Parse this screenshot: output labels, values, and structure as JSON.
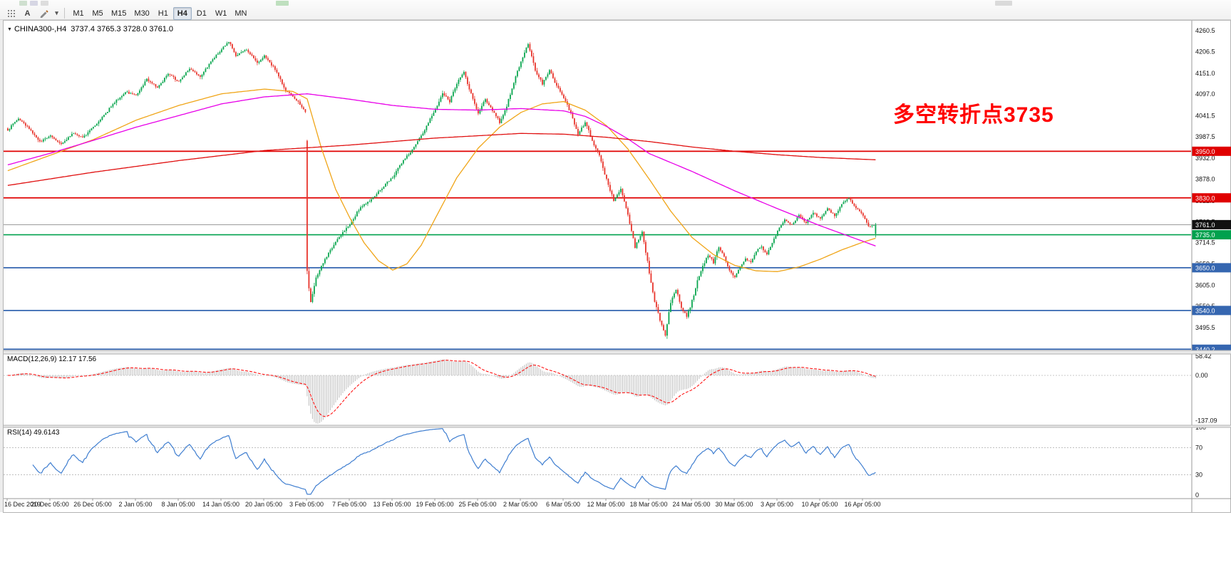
{
  "toolbar": {
    "tools": [
      {
        "name": "grid-tool",
        "label": ""
      },
      {
        "name": "text-tool",
        "label": "A"
      },
      {
        "name": "pencil-tool",
        "label": ""
      },
      {
        "name": "draw-tools-dropdown",
        "label": "▾"
      }
    ],
    "timeframes": [
      "M1",
      "M5",
      "M15",
      "M30",
      "H1",
      "H4",
      "D1",
      "W1",
      "MN"
    ],
    "active_timeframe": "H4"
  },
  "chart": {
    "dropdown_glyph": "▼",
    "title": "CHINA300-,H4",
    "ohlc_text": "3737.4 3765.3 3728.0 3761.0",
    "annotation": "多空转折点3735",
    "annotation_color": "#ff0000"
  },
  "chart_data": {
    "type": "candlestick",
    "symbol": "CHINA300-",
    "timeframe": "H4",
    "bars": 488,
    "bars_per_label": 24,
    "price_range": [
      3437,
      4279
    ],
    "price_axis_ticks": [
      "4260.5",
      "4206.5",
      "4151.0",
      "4097.0",
      "4041.5",
      "3987.5",
      "3932.0",
      "3878.0",
      "3822.5",
      "3768.5",
      "3714.5",
      "3659.5",
      "3605.0",
      "3550.5",
      "3495.5",
      "3441.0"
    ],
    "time_labels": [
      "16 Dec 2019",
      "20 Dec 05:00",
      "26 Dec 05:00",
      "2 Jan 05:00",
      "8 Jan 05:00",
      "14 Jan 05:00",
      "20 Jan 05:00",
      "3 Feb 05:00",
      "7 Feb 05:00",
      "13 Feb 05:00",
      "19 Feb 05:00",
      "25 Feb 05:00",
      "2 Mar 05:00",
      "6 Mar 05:00",
      "12 Mar 05:00",
      "18 Mar 05:00",
      "24 Mar 05:00",
      "30 Mar 05:00",
      "3 Apr 05:00",
      "10 Apr 05:00",
      "16 Apr 05:00"
    ],
    "levels": [
      {
        "label": "3950.0",
        "price": 3950.0,
        "color": "#e00000"
      },
      {
        "label": "3830.0",
        "price": 3830.0,
        "color": "#e00000"
      },
      {
        "label": "3735.0",
        "price": 3735.0,
        "color": "#00a14e"
      },
      {
        "label": "3650.0",
        "price": 3650.0,
        "color": "#3566b0"
      },
      {
        "label": "3540.0",
        "price": 3540.0,
        "color": "#3566b0"
      },
      {
        "label": "3440.2",
        "price": 3440.2,
        "color": "#3566b0"
      }
    ],
    "current_price": {
      "price": 3761.0,
      "label": "3761.0",
      "box_color": "#111111"
    },
    "last_candle_ohlc": [
      3737.4,
      3765.3,
      3728.0,
      3761.0
    ],
    "colors": {
      "up": "#0aa64f",
      "down": "#e8352c"
    },
    "price_anchors": [
      [
        0,
        4005
      ],
      [
        6,
        4035
      ],
      [
        12,
        4008
      ],
      [
        18,
        3975
      ],
      [
        24,
        3990
      ],
      [
        30,
        3968
      ],
      [
        36,
        3996
      ],
      [
        42,
        3984
      ],
      [
        48,
        4012
      ],
      [
        54,
        4042
      ],
      [
        60,
        4076
      ],
      [
        66,
        4102
      ],
      [
        72,
        4094
      ],
      [
        78,
        4136
      ],
      [
        84,
        4114
      ],
      [
        90,
        4150
      ],
      [
        96,
        4128
      ],
      [
        102,
        4162
      ],
      [
        108,
        4142
      ],
      [
        114,
        4182
      ],
      [
        120,
        4212
      ],
      [
        124,
        4233
      ],
      [
        128,
        4196
      ],
      [
        134,
        4212
      ],
      [
        140,
        4178
      ],
      [
        144,
        4196
      ],
      [
        150,
        4162
      ],
      [
        156,
        4106
      ],
      [
        162,
        4082
      ],
      [
        167,
        4052
      ],
      [
        168,
        3640
      ],
      [
        170,
        3566
      ],
      [
        173,
        3622
      ],
      [
        178,
        3674
      ],
      [
        184,
        3716
      ],
      [
        192,
        3764
      ],
      [
        198,
        3806
      ],
      [
        204,
        3826
      ],
      [
        210,
        3856
      ],
      [
        216,
        3884
      ],
      [
        222,
        3926
      ],
      [
        228,
        3960
      ],
      [
        234,
        4006
      ],
      [
        240,
        4060
      ],
      [
        244,
        4100
      ],
      [
        248,
        4078
      ],
      [
        252,
        4124
      ],
      [
        256,
        4154
      ],
      [
        260,
        4098
      ],
      [
        264,
        4048
      ],
      [
        268,
        4084
      ],
      [
        272,
        4056
      ],
      [
        276,
        4024
      ],
      [
        280,
        4066
      ],
      [
        284,
        4128
      ],
      [
        288,
        4182
      ],
      [
        292,
        4226
      ],
      [
        296,
        4158
      ],
      [
        300,
        4124
      ],
      [
        304,
        4158
      ],
      [
        308,
        4118
      ],
      [
        312,
        4088
      ],
      [
        316,
        4048
      ],
      [
        320,
        3992
      ],
      [
        324,
        4024
      ],
      [
        328,
        3978
      ],
      [
        332,
        3938
      ],
      [
        336,
        3878
      ],
      [
        340,
        3824
      ],
      [
        344,
        3854
      ],
      [
        348,
        3788
      ],
      [
        352,
        3704
      ],
      [
        356,
        3744
      ],
      [
        360,
        3638
      ],
      [
        363,
        3564
      ],
      [
        366,
        3514
      ],
      [
        369,
        3478
      ],
      [
        372,
        3560
      ],
      [
        375,
        3594
      ],
      [
        378,
        3548
      ],
      [
        381,
        3524
      ],
      [
        384,
        3564
      ],
      [
        387,
        3614
      ],
      [
        390,
        3654
      ],
      [
        393,
        3684
      ],
      [
        396,
        3664
      ],
      [
        399,
        3704
      ],
      [
        402,
        3680
      ],
      [
        405,
        3644
      ],
      [
        408,
        3624
      ],
      [
        411,
        3654
      ],
      [
        414,
        3674
      ],
      [
        417,
        3664
      ],
      [
        420,
        3694
      ],
      [
        423,
        3704
      ],
      [
        426,
        3684
      ],
      [
        429,
        3714
      ],
      [
        432,
        3744
      ],
      [
        436,
        3774
      ],
      [
        440,
        3760
      ],
      [
        444,
        3784
      ],
      [
        448,
        3764
      ],
      [
        452,
        3794
      ],
      [
        456,
        3774
      ],
      [
        460,
        3804
      ],
      [
        464,
        3784
      ],
      [
        468,
        3814
      ],
      [
        472,
        3830
      ],
      [
        476,
        3804
      ],
      [
        480,
        3784
      ],
      [
        483,
        3754
      ],
      [
        487,
        3761
      ]
    ],
    "moving_averages": [
      {
        "name": "fast",
        "color": "#f0a518",
        "anchors": [
          [
            0,
            3900
          ],
          [
            24,
            3940
          ],
          [
            48,
            3980
          ],
          [
            72,
            4030
          ],
          [
            96,
            4068
          ],
          [
            120,
            4098
          ],
          [
            144,
            4110
          ],
          [
            160,
            4104
          ],
          [
            168,
            4085
          ],
          [
            176,
            3958
          ],
          [
            184,
            3852
          ],
          [
            192,
            3778
          ],
          [
            200,
            3714
          ],
          [
            208,
            3668
          ],
          [
            216,
            3644
          ],
          [
            224,
            3660
          ],
          [
            232,
            3708
          ],
          [
            240,
            3778
          ],
          [
            252,
            3882
          ],
          [
            264,
            3958
          ],
          [
            276,
            4012
          ],
          [
            288,
            4050
          ],
          [
            300,
            4072
          ],
          [
            312,
            4078
          ],
          [
            324,
            4056
          ],
          [
            336,
            4016
          ],
          [
            348,
            3956
          ],
          [
            360,
            3878
          ],
          [
            372,
            3796
          ],
          [
            384,
            3728
          ],
          [
            396,
            3684
          ],
          [
            408,
            3656
          ],
          [
            420,
            3642
          ],
          [
            432,
            3640
          ],
          [
            444,
            3652
          ],
          [
            456,
            3672
          ],
          [
            468,
            3696
          ],
          [
            480,
            3716
          ],
          [
            487,
            3726
          ]
        ]
      },
      {
        "name": "mid",
        "color": "#e800e8",
        "anchors": [
          [
            0,
            3915
          ],
          [
            24,
            3945
          ],
          [
            48,
            3978
          ],
          [
            72,
            4012
          ],
          [
            96,
            4042
          ],
          [
            120,
            4072
          ],
          [
            144,
            4090
          ],
          [
            168,
            4098
          ],
          [
            192,
            4084
          ],
          [
            216,
            4068
          ],
          [
            240,
            4058
          ],
          [
            264,
            4056
          ],
          [
            288,
            4060
          ],
          [
            312,
            4054
          ],
          [
            324,
            4040
          ],
          [
            336,
            4014
          ],
          [
            348,
            3982
          ],
          [
            360,
            3944
          ],
          [
            384,
            3898
          ],
          [
            408,
            3848
          ],
          [
            432,
            3802
          ],
          [
            456,
            3758
          ],
          [
            480,
            3718
          ],
          [
            487,
            3706
          ]
        ]
      },
      {
        "name": "slow",
        "color": "#e01010",
        "anchors": [
          [
            0,
            3862
          ],
          [
            48,
            3896
          ],
          [
            96,
            3926
          ],
          [
            144,
            3952
          ],
          [
            192,
            3966
          ],
          [
            240,
            3984
          ],
          [
            288,
            3996
          ],
          [
            312,
            3994
          ],
          [
            336,
            3986
          ],
          [
            360,
            3975
          ],
          [
            384,
            3961
          ],
          [
            408,
            3950
          ],
          [
            432,
            3941
          ],
          [
            456,
            3934
          ],
          [
            487,
            3928
          ]
        ]
      }
    ]
  },
  "macd": {
    "label": "MACD(12,26,9) 12.17 17.56",
    "fast": 12,
    "slow": 26,
    "signal": 9,
    "axis_ticks": [
      "58.42",
      "0.00",
      "-137.09"
    ],
    "histogram_color": "#bdbdbd",
    "signal_color": "#ff0000"
  },
  "rsi": {
    "label": "RSI(14) 49.6143",
    "period": 14,
    "value": 49.6143,
    "axis_ticks": [
      "100",
      "70",
      "30",
      "0"
    ],
    "level_lines": [
      70,
      30
    ],
    "line_color": "#3f7ed0"
  }
}
